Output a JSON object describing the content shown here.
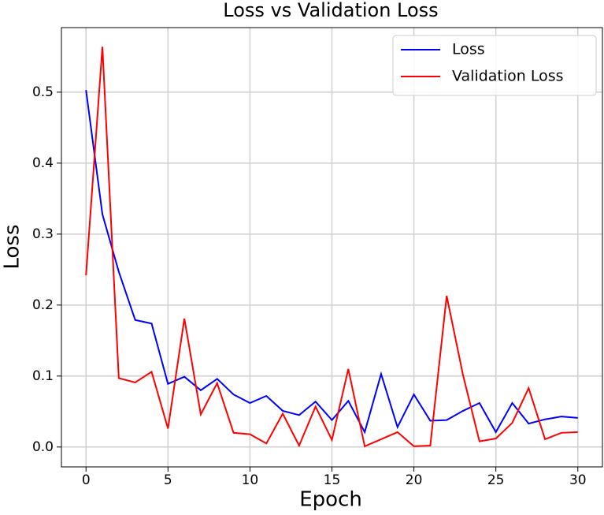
{
  "chart_data": {
    "type": "line",
    "title": "Loss vs Validation Loss",
    "x_label": "Epoch",
    "y_label": "Loss",
    "x": [
      0,
      1,
      2,
      3,
      4,
      5,
      6,
      7,
      8,
      9,
      10,
      11,
      12,
      13,
      14,
      15,
      16,
      17,
      18,
      19,
      20,
      21,
      22,
      23,
      24,
      25,
      26,
      27,
      28,
      29,
      30
    ],
    "series": [
      {
        "name": "Loss",
        "color": "#0000ff",
        "values": [
          0.503,
          0.328,
          0.247,
          0.179,
          0.174,
          0.089,
          0.099,
          0.08,
          0.096,
          0.074,
          0.062,
          0.072,
          0.051,
          0.045,
          0.064,
          0.038,
          0.065,
          0.021,
          0.103,
          0.028,
          0.074,
          0.037,
          0.038,
          0.051,
          0.062,
          0.021,
          0.062,
          0.033,
          0.039,
          0.043,
          0.041
        ]
      },
      {
        "name": "Validation Loss",
        "color": "#ff0000",
        "values": [
          0.242,
          0.564,
          0.097,
          0.091,
          0.106,
          0.026,
          0.181,
          0.046,
          0.09,
          0.02,
          0.018,
          0.005,
          0.047,
          0.002,
          0.057,
          0.01,
          0.11,
          0.001,
          0.011,
          0.021,
          0.001,
          0.002,
          0.213,
          0.101,
          0.008,
          0.012,
          0.034,
          0.083,
          0.011,
          0.02,
          0.021
        ]
      }
    ],
    "xlim": [
      -1.5,
      31.5
    ],
    "ylim": [
      -0.028,
      0.591
    ],
    "xticks": [
      0,
      5,
      10,
      15,
      20,
      25,
      30
    ],
    "yticks": [
      {
        "value": 0,
        "label": "0.0"
      },
      0.1,
      0.2,
      0.3,
      0.4,
      0.5
    ],
    "grid": true,
    "legend": "upper right"
  }
}
